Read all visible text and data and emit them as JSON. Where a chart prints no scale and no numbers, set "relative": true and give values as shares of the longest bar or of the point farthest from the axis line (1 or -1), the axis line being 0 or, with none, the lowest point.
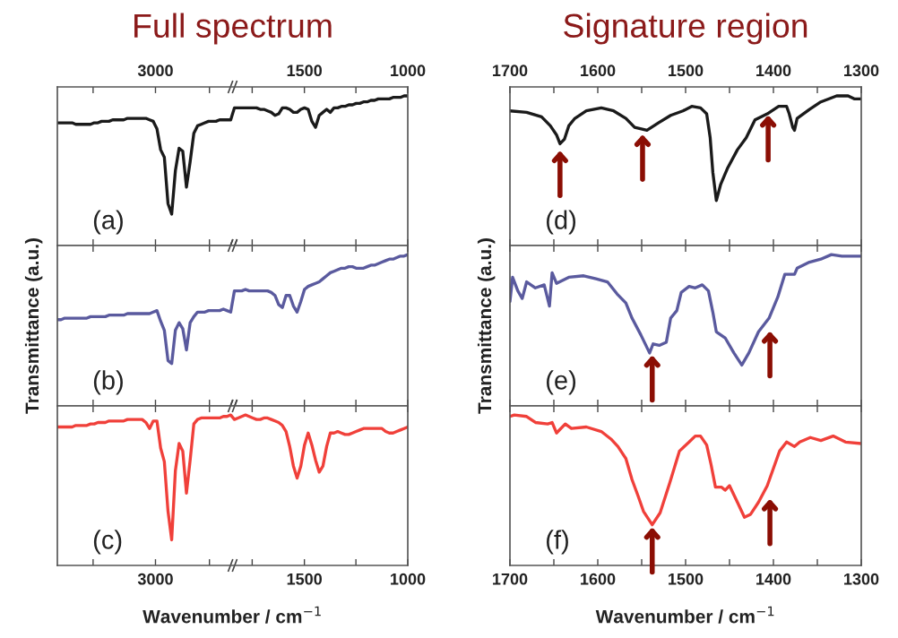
{
  "chart_data": [
    {
      "type": "line",
      "title": "Full spectrum",
      "relative": true,
      "annotations": [
        "(a)",
        "3000",
        "1500",
        "1000"
      ],
      "categories": [
        null,
        null,
        null,
        null,
        null,
        null,
        null,
        null,
        null,
        null,
        null,
        null,
        null,
        null,
        null,
        null,
        null,
        null,
        null,
        null,
        null,
        null,
        null,
        null,
        null,
        null,
        null,
        null,
        null,
        null,
        null,
        null,
        null,
        null,
        null,
        null,
        null,
        null,
        null,
        null,
        null,
        null,
        null,
        null,
        null,
        null,
        null,
        null,
        null,
        null,
        null,
        null,
        null,
        null,
        null,
        null,
        null,
        null,
        null,
        null,
        null,
        null,
        null,
        null,
        null,
        null,
        null,
        null,
        null,
        null,
        null,
        null,
        null,
        null,
        null,
        null,
        null,
        null,
        null,
        null,
        null,
        null,
        null,
        null,
        null,
        null,
        null,
        null,
        null,
        null,
        null,
        null,
        null,
        null,
        null,
        null
      ],
      "series": [
        {
          "color": "#1a1a1a",
          "values": [
            0.82,
            0.82,
            0.82,
            0.82,
            0.82,
            0.81,
            0.81,
            0.81,
            0.81,
            0.81,
            0.82,
            0.82,
            0.83,
            0.83,
            0.83,
            0.84,
            0.84,
            0.84,
            0.84,
            0.85,
            0.85,
            0.85,
            0.85,
            0.85,
            0.85,
            0.84,
            0.83,
            0.78,
            0.64,
            0.59,
            0.28,
            0.21,
            0.5,
            0.65,
            0.63,
            0.39,
            0.56,
            0.75,
            0.8,
            0.81,
            0.82,
            0.83,
            0.83,
            0.83,
            0.84,
            0.84,
            0.84,
            0.84,
            0.92,
            0.92,
            0.92,
            0.92,
            0.92,
            0.92,
            0.92,
            0.91,
            0.91,
            0.9,
            0.89,
            0.87,
            0.88,
            0.92,
            0.92,
            0.91,
            0.89,
            0.89,
            0.91,
            0.92,
            0.91,
            0.83,
            0.79,
            0.87,
            0.89,
            0.91,
            0.89,
            0.92,
            0.92,
            0.93,
            0.93,
            0.94,
            0.94,
            0.95,
            0.95,
            0.96,
            0.96,
            0.97,
            0.97,
            0.98,
            0.98,
            0.98,
            0.98,
            0.99,
            0.99,
            0.99,
            1.0,
            1.0
          ]
        }
      ]
    },
    {
      "type": "line",
      "relative": true,
      "ylabel": "Transmittance (a.u.)",
      "annotations": [
        "(b)"
      ],
      "categories": [
        null,
        null,
        null,
        null,
        null,
        null,
        null,
        null,
        null,
        null,
        null,
        null,
        null,
        null,
        null,
        null,
        null,
        null,
        null,
        null,
        null,
        null,
        null,
        null,
        null,
        null,
        null,
        null,
        null,
        null,
        null,
        null,
        null,
        null,
        null,
        null,
        null,
        null,
        null,
        null,
        null,
        null,
        null,
        null,
        null,
        null,
        null,
        null,
        null,
        null,
        null,
        null,
        null,
        null,
        null,
        null,
        null,
        null,
        null,
        null,
        null,
        null,
        null,
        null,
        null,
        null,
        null,
        null,
        null,
        null,
        null,
        null,
        null,
        null,
        null,
        null,
        null,
        null,
        null,
        null,
        null,
        null,
        null,
        null,
        null,
        null,
        null,
        null,
        null,
        null,
        null,
        null,
        null,
        null,
        null,
        null
      ],
      "series": [
        {
          "color": "#5a5a9e",
          "values": [
            0.57,
            0.57,
            0.58,
            0.58,
            0.58,
            0.58,
            0.58,
            0.58,
            0.58,
            0.59,
            0.59,
            0.59,
            0.59,
            0.59,
            0.6,
            0.6,
            0.6,
            0.6,
            0.6,
            0.61,
            0.61,
            0.61,
            0.61,
            0.61,
            0.61,
            0.61,
            0.62,
            0.63,
            0.56,
            0.5,
            0.3,
            0.28,
            0.5,
            0.55,
            0.51,
            0.37,
            0.55,
            0.59,
            0.62,
            0.62,
            0.62,
            0.63,
            0.63,
            0.63,
            0.63,
            0.64,
            0.63,
            0.62,
            0.76,
            0.76,
            0.76,
            0.77,
            0.76,
            0.76,
            0.76,
            0.76,
            0.76,
            0.76,
            0.75,
            0.73,
            0.67,
            0.65,
            0.73,
            0.73,
            0.66,
            0.62,
            0.69,
            0.77,
            0.79,
            0.8,
            0.81,
            0.82,
            0.84,
            0.86,
            0.88,
            0.89,
            0.9,
            0.91,
            0.91,
            0.92,
            0.92,
            0.91,
            0.91,
            0.91,
            0.92,
            0.93,
            0.93,
            0.94,
            0.95,
            0.96,
            0.97,
            0.97,
            0.98,
            0.99,
            0.99,
            1.0
          ]
        }
      ]
    },
    {
      "type": "line",
      "relative": true,
      "xlabel": "Wavenumber / cm$^{−1}$",
      "annotations": [
        "(c)",
        "3000",
        "1500",
        "1000"
      ],
      "categories": [
        null,
        null,
        null,
        null,
        null,
        null,
        null,
        null,
        null,
        null,
        null,
        null,
        null,
        null,
        null,
        null,
        null,
        null,
        null,
        null,
        null,
        null,
        null,
        null,
        null,
        null,
        null,
        null,
        null,
        null,
        null,
        null,
        null,
        null,
        null,
        null,
        null,
        null,
        null,
        null,
        null,
        null,
        null,
        null,
        null,
        null,
        null,
        null,
        null,
        null,
        null,
        null,
        null,
        null,
        null,
        null,
        null,
        null,
        null,
        null,
        null,
        null,
        null,
        null,
        null,
        null,
        null,
        null,
        null,
        null,
        null,
        null,
        null,
        null,
        null,
        null,
        null,
        null,
        null,
        null,
        null,
        null,
        null,
        null,
        null,
        null,
        null,
        null,
        null,
        null,
        null,
        null,
        null,
        null,
        null,
        null
      ],
      "series": [
        {
          "color": "#f0403a",
          "values": [
            0.92,
            0.92,
            0.92,
            0.92,
            0.92,
            0.93,
            0.93,
            0.93,
            0.93,
            0.94,
            0.94,
            0.95,
            0.95,
            0.95,
            0.96,
            0.96,
            0.96,
            0.96,
            0.96,
            0.97,
            0.97,
            0.97,
            0.97,
            0.97,
            0.95,
            0.91,
            0.96,
            0.96,
            0.78,
            0.69,
            0.36,
            0.17,
            0.63,
            0.81,
            0.76,
            0.48,
            0.7,
            0.94,
            0.97,
            0.98,
            0.98,
            0.98,
            0.98,
            0.98,
            0.98,
            0.99,
            0.99,
            1.0,
            0.97,
            0.98,
            0.99,
            1.0,
            0.99,
            0.98,
            0.97,
            0.97,
            0.98,
            0.98,
            0.97,
            0.96,
            0.95,
            0.93,
            0.89,
            0.79,
            0.66,
            0.58,
            0.66,
            0.8,
            0.88,
            0.8,
            0.7,
            0.62,
            0.66,
            0.79,
            0.88,
            0.88,
            0.89,
            0.88,
            0.87,
            0.87,
            0.88,
            0.89,
            0.9,
            0.91,
            0.91,
            0.91,
            0.91,
            0.91,
            0.91,
            0.89,
            0.88,
            0.88,
            0.89,
            0.9,
            0.91,
            0.92
          ]
        }
      ]
    },
    {
      "type": "line",
      "title": "Signature region",
      "relative": true,
      "xlim": [
        1700,
        1300
      ],
      "xticks": [
        1700,
        {
          "value": 1650,
          "label": null
        },
        1600,
        {
          "value": 1550,
          "label": null
        },
        1500,
        {
          "value": 1450,
          "label": null
        },
        1400,
        {
          "value": 1350,
          "label": null
        },
        1300
      ],
      "annotations": [
        "(d)"
      ],
      "series": [
        {
          "color": "#1a1a1a",
          "x": [
            1700,
            1681,
            1664,
            1654,
            1647,
            1643,
            1638,
            1633,
            1626,
            1613,
            1596,
            1582,
            1568,
            1558,
            1544,
            1531,
            1517,
            1503,
            1493,
            1483,
            1476,
            1472,
            1469,
            1465,
            1460,
            1452,
            1441,
            1431,
            1421,
            1407,
            1394,
            1385,
            1382,
            1378,
            1376,
            1373,
            1359,
            1346,
            1328,
            1315,
            1308,
            1300
          ],
          "values": [
            0.9,
            0.89,
            0.86,
            0.8,
            0.74,
            0.68,
            0.71,
            0.8,
            0.85,
            0.9,
            0.92,
            0.9,
            0.85,
            0.79,
            0.77,
            0.82,
            0.87,
            0.9,
            0.93,
            0.92,
            0.88,
            0.72,
            0.49,
            0.3,
            0.41,
            0.52,
            0.64,
            0.72,
            0.84,
            0.88,
            0.93,
            0.93,
            0.88,
            0.79,
            0.77,
            0.85,
            0.91,
            0.96,
            1,
            1,
            0.98,
            0.98
          ]
        }
      ]
    },
    {
      "type": "line",
      "relative": true,
      "ylabel": "Transmittance (a.u.)",
      "xlim": [
        1700,
        1300
      ],
      "xticks": [
        1700,
        1650,
        1600,
        1550,
        1500,
        1450,
        1400,
        1350,
        1300
      ],
      "tick_labels": false,
      "annotations": [
        "(e)"
      ],
      "series": [
        {
          "color": "#5a5a9e",
          "x": [
            1700,
            1697,
            1691,
            1686,
            1681,
            1671,
            1661,
            1655,
            1652,
            1647,
            1633,
            1616,
            1602,
            1589,
            1578,
            1568,
            1561,
            1551,
            1541,
            1537,
            1530,
            1522,
            1517,
            1510,
            1505,
            1496,
            1489,
            1481,
            1474,
            1469,
            1465,
            1455,
            1445,
            1436,
            1428,
            1417,
            1405,
            1395,
            1387,
            1376,
            1373,
            1359,
            1346,
            1334,
            1322,
            1300
          ],
          "values": [
            0.69,
            0.85,
            0.76,
            0.71,
            0.82,
            0.78,
            0.8,
            0.66,
            0.88,
            0.81,
            0.85,
            0.86,
            0.84,
            0.82,
            0.74,
            0.68,
            0.58,
            0.47,
            0.35,
            0.41,
            0.4,
            0.42,
            0.58,
            0.63,
            0.75,
            0.79,
            0.78,
            0.8,
            0.76,
            0.62,
            0.49,
            0.45,
            0.35,
            0.27,
            0.35,
            0.49,
            0.58,
            0.72,
            0.87,
            0.87,
            0.91,
            0.95,
            0.97,
            1,
            0.99,
            0.99
          ]
        }
      ]
    },
    {
      "type": "line",
      "relative": true,
      "xlabel": "Wavenumber / cm$^{−1}$",
      "xlim": [
        1700,
        1300
      ],
      "xticks": [
        1700,
        {
          "value": 1650,
          "label": null
        },
        1600,
        {
          "value": 1550,
          "label": null
        },
        1500,
        {
          "value": 1450,
          "label": null
        },
        1400,
        {
          "value": 1350,
          "label": null
        },
        1300
      ],
      "annotations": [
        "(f)"
      ],
      "series": [
        {
          "color": "#f0403a",
          "x": [
            1700,
            1695,
            1681,
            1671,
            1657,
            1652,
            1647,
            1637,
            1630,
            1613,
            1596,
            1585,
            1577,
            1568,
            1561,
            1554,
            1548,
            1538,
            1529,
            1518,
            1507,
            1496,
            1489,
            1483,
            1476,
            1471,
            1466,
            1459,
            1455,
            1450,
            1441,
            1433,
            1426,
            1417,
            1407,
            1393,
            1385,
            1376,
            1370,
            1358,
            1346,
            1332,
            1318,
            1300
          ],
          "values": [
            0.99,
            1,
            0.99,
            0.95,
            0.94,
            0.95,
            0.88,
            0.94,
            0.91,
            0.92,
            0.89,
            0.84,
            0.79,
            0.71,
            0.57,
            0.46,
            0.36,
            0.27,
            0.35,
            0.55,
            0.76,
            0.82,
            0.86,
            0.86,
            0.8,
            0.67,
            0.52,
            0.52,
            0.5,
            0.53,
            0.42,
            0.32,
            0.34,
            0.42,
            0.53,
            0.76,
            0.82,
            0.79,
            0.82,
            0.85,
            0.83,
            0.86,
            0.82,
            0.81
          ]
        }
      ]
    }
  ]
}
